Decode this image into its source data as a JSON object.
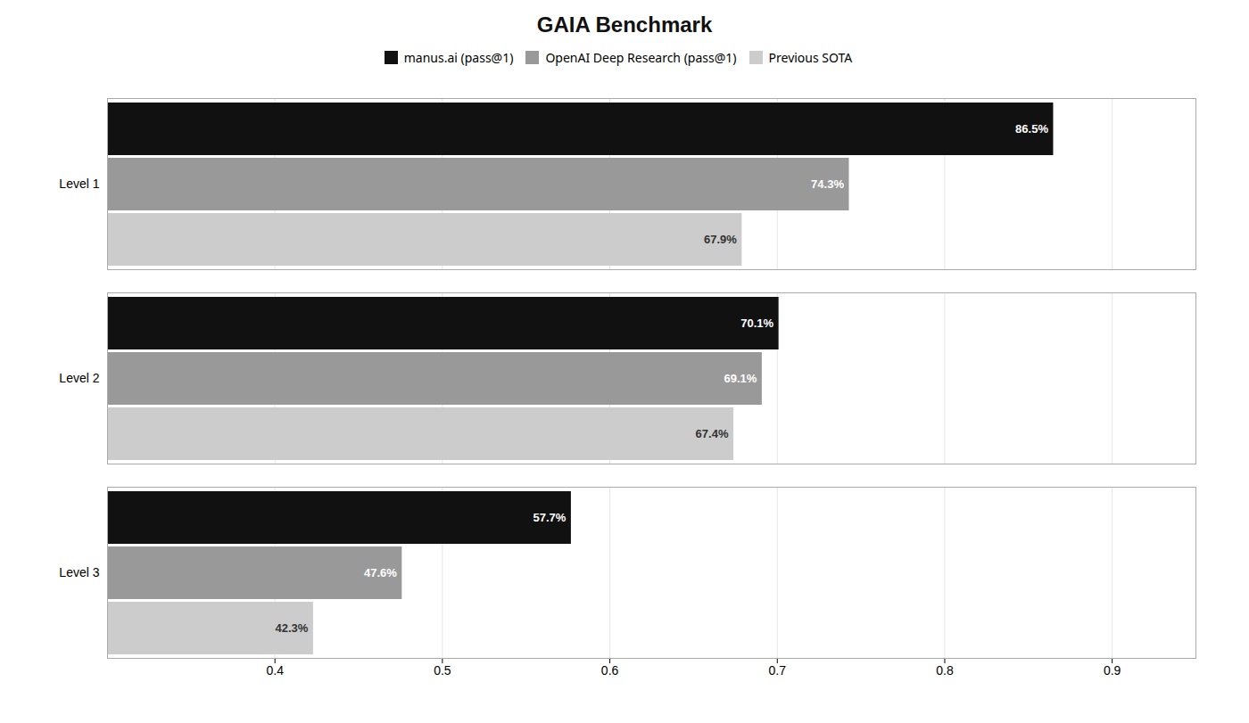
{
  "chart_data": {
    "type": "bar",
    "orientation": "horizontal",
    "title": "GAIA Benchmark",
    "categories": [
      "Level 1",
      "Level 2",
      "Level 3"
    ],
    "series": [
      {
        "name": "manus.ai (pass@1)",
        "color": "#111111",
        "values": [
          0.865,
          0.701,
          0.577
        ],
        "value_labels": [
          "86.5%",
          "70.1%",
          "57.7%"
        ]
      },
      {
        "name": "OpenAI Deep Research (pass@1)",
        "color": "#999999",
        "values": [
          0.743,
          0.691,
          0.476
        ],
        "value_labels": [
          "74.3%",
          "69.1%",
          "47.6%"
        ]
      },
      {
        "name": "Previous SOTA",
        "color": "#cccccc",
        "values": [
          0.679,
          0.674,
          0.423
        ],
        "value_labels": [
          "67.9%",
          "67.4%",
          "42.3%"
        ]
      }
    ],
    "xlim": [
      0.3,
      0.95
    ],
    "xticks": [
      0.4,
      0.5,
      0.6,
      0.7,
      0.8,
      0.9
    ],
    "grid": true,
    "legend": "top",
    "data_labels": true
  }
}
